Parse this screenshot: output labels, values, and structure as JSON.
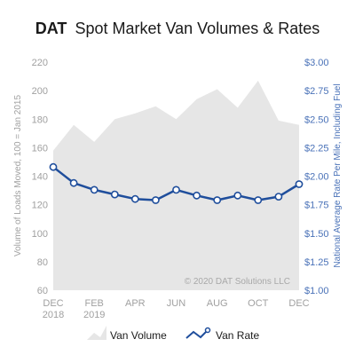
{
  "title": {
    "brand": "DAT",
    "text": "Spot Market Van Volumes & Rates"
  },
  "watermark": "© 2020 DAT Solutions LLC",
  "chart_data": {
    "type": "area+line",
    "title": "DAT Spot Market Van Volumes & Rates",
    "x": [
      "2018-12",
      "2019-01",
      "2019-02",
      "2019-03",
      "2019-04",
      "2019-05",
      "2019-06",
      "2019-07",
      "2019-08",
      "2019-09",
      "2019-10",
      "2019-11",
      "2019-12"
    ],
    "x_tick_labels": [
      {
        "x": "2018-12",
        "lines": [
          "DEC",
          "2018"
        ]
      },
      {
        "x": "2019-02",
        "lines": [
          "FEB",
          "2019"
        ]
      },
      {
        "x": "2019-04",
        "lines": [
          "APR"
        ]
      },
      {
        "x": "2019-06",
        "lines": [
          "JUN"
        ]
      },
      {
        "x": "2019-08",
        "lines": [
          "AUG"
        ]
      },
      {
        "x": "2019-10",
        "lines": [
          "OCT"
        ]
      },
      {
        "x": "2019-12",
        "lines": [
          "DEC"
        ]
      }
    ],
    "left_axis": {
      "label": "Volume of Loads Moved, 100 = Jan 2015",
      "ylim": [
        60,
        220
      ],
      "ticks": [
        60,
        80,
        100,
        120,
        140,
        160,
        180,
        200,
        220
      ]
    },
    "right_axis": {
      "label": "National Average Rate Per Mile, Including Fuel",
      "ylim": [
        1.0,
        3.0
      ],
      "ticks": [
        "$1.00",
        "$1.25",
        "$1.50",
        "$1.75",
        "$2.00",
        "$2.25",
        "$2.50",
        "$2.75",
        "$3.00"
      ]
    },
    "series": [
      {
        "name": "Van Volume",
        "type": "area",
        "axis": "left",
        "color": "#e6e6e6",
        "values": [
          158,
          176,
          164,
          180,
          184,
          189,
          180,
          194,
          201,
          188,
          207,
          179,
          176
        ]
      },
      {
        "name": "Van Rate",
        "type": "line",
        "axis": "right",
        "color": "#1f4e9c",
        "values": [
          2.08,
          1.94,
          1.88,
          1.84,
          1.8,
          1.79,
          1.88,
          1.83,
          1.79,
          1.83,
          1.79,
          1.82,
          1.93
        ]
      }
    ],
    "grid": false,
    "legend": "bottom"
  },
  "legend": [
    {
      "label": "Van Volume"
    },
    {
      "label": "Van Rate"
    }
  ]
}
